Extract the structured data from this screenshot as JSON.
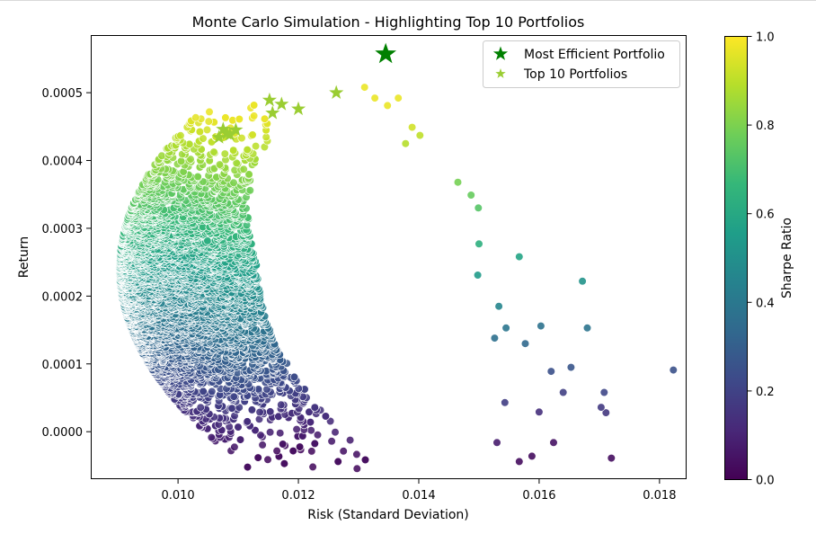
{
  "chart_data": {
    "type": "scatter",
    "title": "Monte Carlo Simulation - Highlighting Top 10 Portfolios",
    "xlabel": "Risk (Standard Deviation)",
    "ylabel": "Return",
    "xlim": [
      0.00855,
      0.01845
    ],
    "ylim": [
      -7e-05,
      0.000585
    ],
    "xticks": [
      0.01,
      0.012,
      0.014,
      0.016,
      0.018
    ],
    "xtick_labels": [
      "0.010",
      "0.012",
      "0.014",
      "0.016",
      "0.018"
    ],
    "yticks": [
      0.0,
      0.0001,
      0.0002,
      0.0003,
      0.0004,
      0.0005
    ],
    "ytick_labels": [
      "0.0000",
      "0.0001",
      "0.0002",
      "0.0003",
      "0.0004",
      "0.0005"
    ],
    "grid": false,
    "colormap": "viridis",
    "colorbar": {
      "label": "Sharpe Ratio",
      "range": [
        0.0,
        1.0
      ],
      "ticks": [
        0.0,
        0.2,
        0.4,
        0.6,
        0.8,
        1.0
      ],
      "tick_labels": [
        "0.0",
        "0.2",
        "0.4",
        "0.6",
        "0.8",
        "1.0"
      ]
    },
    "legend": {
      "placement": "upper right",
      "entries": [
        {
          "label": "Most Efficient Portfolio",
          "marker": "star",
          "color": "#008000"
        },
        {
          "label": "Top 10 Portfolios",
          "marker": "star",
          "color": "#9acd32"
        }
      ]
    },
    "most_efficient": {
      "x": 0.01345,
      "y": 0.000557
    },
    "top10": [
      {
        "x": 0.01263,
        "y": 0.0005
      },
      {
        "x": 0.01152,
        "y": 0.000489
      },
      {
        "x": 0.01172,
        "y": 0.000483
      },
      {
        "x": 0.012,
        "y": 0.000476
      },
      {
        "x": 0.01157,
        "y": 0.00047
      },
      {
        "x": 0.01075,
        "y": 0.000446
      },
      {
        "x": 0.01096,
        "y": 0.000445
      },
      {
        "x": 0.01081,
        "y": 0.00044
      },
      {
        "x": 0.01068,
        "y": 0.000434
      },
      {
        "x": 0.01086,
        "y": 0.000438
      }
    ],
    "outliers": [
      {
        "x": 0.01823,
        "y": 9.1e-05
      },
      {
        "x": 0.01672,
        "y": 0.000222
      },
      {
        "x": 0.0172,
        "y": -3.9e-05
      },
      {
        "x": 0.01708,
        "y": 5.8e-05
      },
      {
        "x": 0.01711,
        "y": 2.8e-05
      },
      {
        "x": 0.01703,
        "y": 3.6e-05
      },
      {
        "x": 0.0168,
        "y": 0.000153
      },
      {
        "x": 0.01653,
        "y": 9.5e-05
      },
      {
        "x": 0.0164,
        "y": 5.8e-05
      },
      {
        "x": 0.0162,
        "y": 8.9e-05
      },
      {
        "x": 0.01603,
        "y": 0.000156
      },
      {
        "x": 0.01567,
        "y": 0.000258
      },
      {
        "x": 0.01567,
        "y": -4.4e-05
      },
      {
        "x": 0.01588,
        "y": -3.6e-05
      },
      {
        "x": 0.016,
        "y": 2.9e-05
      },
      {
        "x": 0.01624,
        "y": -1.6e-05
      },
      {
        "x": 0.01577,
        "y": 0.00013
      },
      {
        "x": 0.01545,
        "y": 0.000153
      },
      {
        "x": 0.01533,
        "y": 0.000185
      },
      {
        "x": 0.01526,
        "y": 0.000138
      },
      {
        "x": 0.0153,
        "y": -1.6e-05
      },
      {
        "x": 0.01543,
        "y": 4.3e-05
      },
      {
        "x": 0.01499,
        "y": 0.00033
      },
      {
        "x": 0.015,
        "y": 0.000277
      },
      {
        "x": 0.01498,
        "y": 0.000231
      },
      {
        "x": 0.01487,
        "y": 0.000349
      },
      {
        "x": 0.01465,
        "y": 0.000368
      },
      {
        "x": 0.01402,
        "y": 0.000437
      },
      {
        "x": 0.01389,
        "y": 0.000449
      },
      {
        "x": 0.01366,
        "y": 0.000492
      },
      {
        "x": 0.01348,
        "y": 0.000481
      },
      {
        "x": 0.0131,
        "y": 0.000508
      },
      {
        "x": 0.01327,
        "y": 0.000492
      },
      {
        "x": 0.01378,
        "y": 0.000425
      }
    ],
    "cloud_description": "about 8000 random portfolios, risk roughly 0.009 to 0.0145, return roughly -0.00005 to 0.00047, colored by Sharpe Ratio"
  }
}
